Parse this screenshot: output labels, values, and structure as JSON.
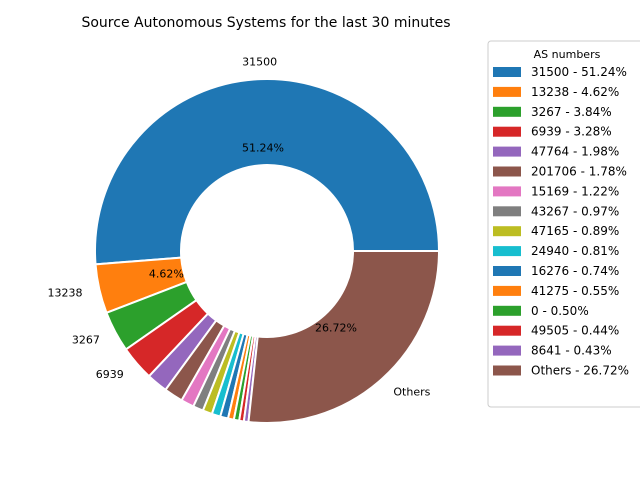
{
  "chart_data": {
    "type": "pie",
    "variant": "donut",
    "title": "Source Autonomous Systems for the last 30 minutes",
    "legend_title": "AS numbers",
    "legend_placement": "right",
    "start_angle_deg": 0,
    "direction": "counterclockwise",
    "slices": [
      {
        "name": "31500",
        "value": 51.24,
        "color": "#1f77b4",
        "legend": "31500 - 51.24%",
        "outer_label": "31500",
        "pct_label": "51.24%"
      },
      {
        "name": "13238",
        "value": 4.62,
        "color": "#ff7f0e",
        "legend": "13238 - 4.62%",
        "outer_label": "13238",
        "pct_label": "4.62%"
      },
      {
        "name": "3267",
        "value": 3.84,
        "color": "#2ca02c",
        "legend": "3267 - 3.84%",
        "outer_label": "3267",
        "pct_label": ""
      },
      {
        "name": "6939",
        "value": 3.28,
        "color": "#d62728",
        "legend": "6939 - 3.28%",
        "outer_label": "6939",
        "pct_label": ""
      },
      {
        "name": "47764",
        "value": 1.98,
        "color": "#9467bd",
        "legend": "47764 - 1.98%",
        "outer_label": "",
        "pct_label": ""
      },
      {
        "name": "201706",
        "value": 1.78,
        "color": "#8c564b",
        "legend": "201706 - 1.78%",
        "outer_label": "",
        "pct_label": ""
      },
      {
        "name": "15169",
        "value": 1.22,
        "color": "#e377c2",
        "legend": "15169 - 1.22%",
        "outer_label": "",
        "pct_label": ""
      },
      {
        "name": "43267",
        "value": 0.97,
        "color": "#7f7f7f",
        "legend": "43267 - 0.97%",
        "outer_label": "",
        "pct_label": ""
      },
      {
        "name": "47165",
        "value": 0.89,
        "color": "#bcbd22",
        "legend": "47165 - 0.89%",
        "outer_label": "",
        "pct_label": ""
      },
      {
        "name": "24940",
        "value": 0.81,
        "color": "#17becf",
        "legend": "24940 - 0.81%",
        "outer_label": "",
        "pct_label": ""
      },
      {
        "name": "16276",
        "value": 0.74,
        "color": "#1f77b4",
        "legend": "16276 - 0.74%",
        "outer_label": "",
        "pct_label": ""
      },
      {
        "name": "41275",
        "value": 0.55,
        "color": "#ff7f0e",
        "legend": "41275 - 0.55%",
        "outer_label": "",
        "pct_label": ""
      },
      {
        "name": "0",
        "value": 0.5,
        "color": "#2ca02c",
        "legend": "0 - 0.50%",
        "outer_label": "",
        "pct_label": ""
      },
      {
        "name": "49505",
        "value": 0.44,
        "color": "#d62728",
        "legend": "49505 - 0.44%",
        "outer_label": "",
        "pct_label": ""
      },
      {
        "name": "8641",
        "value": 0.43,
        "color": "#9467bd",
        "legend": "8641 - 0.43%",
        "outer_label": "",
        "pct_label": ""
      },
      {
        "name": "Others",
        "value": 26.72,
        "color": "#8c564b",
        "legend": "Others - 26.72%",
        "outer_label": "Others",
        "pct_label": "26.72%"
      }
    ]
  }
}
